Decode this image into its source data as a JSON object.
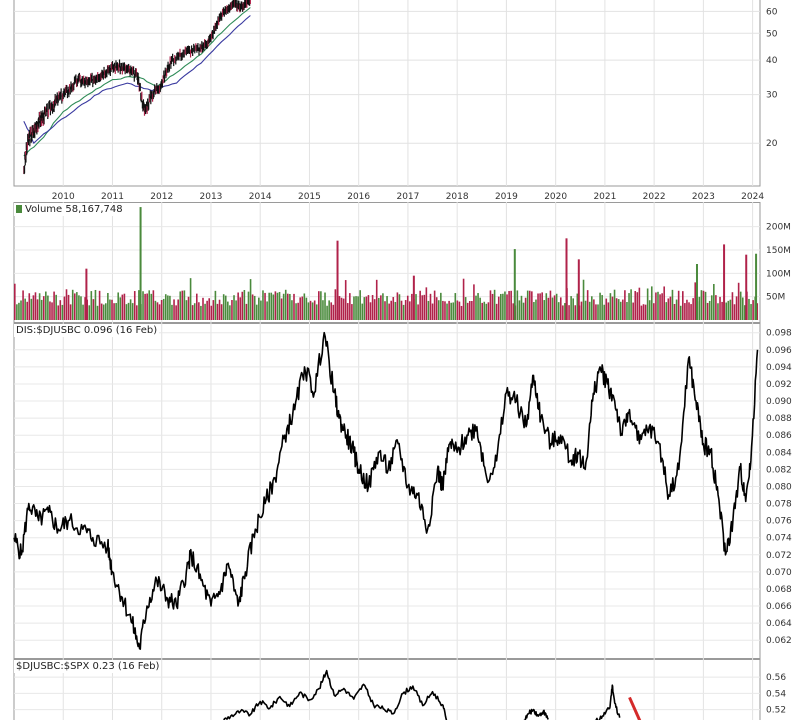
{
  "chart_data": [
    {
      "panel": "price",
      "type": "line",
      "log_scale": true,
      "x_ticks": [
        "2010",
        "2011",
        "2012",
        "2013",
        "2014",
        "2015",
        "2016",
        "2017",
        "2018",
        "2019",
        "2020",
        "2021",
        "2022",
        "2023",
        "2024"
      ],
      "y_ticks": [
        60,
        50,
        40,
        30,
        20
      ],
      "ylim": [
        14,
        66
      ],
      "series": [
        {
          "color": "#111111",
          "style": "bars",
          "x": [
            2009.2,
            2009.3,
            2009.4,
            2009.5,
            2009.6,
            2009.75,
            2009.9,
            2010.1,
            2010.3,
            2010.5,
            2010.7,
            2010.9,
            2011.1,
            2011.3,
            2011.5,
            2011.65,
            2011.8,
            2012.0,
            2012.2,
            2012.5,
            2012.8,
            2013.0,
            2013.2,
            2013.45,
            2013.6,
            2013.8
          ],
          "y": [
            16,
            21,
            22,
            24,
            25,
            27,
            29,
            31,
            34,
            33,
            35,
            37,
            38,
            37,
            35,
            26,
            30,
            33,
            40,
            43,
            44,
            48,
            58,
            64,
            62,
            66
          ]
        },
        {
          "color": "#2e8b57",
          "x": [
            2009.2,
            2009.6,
            2010.0,
            2010.5,
            2011.0,
            2011.5,
            2011.9,
            2012.3,
            2012.8,
            2013.3,
            2013.8
          ],
          "y": [
            18,
            21,
            26,
            30,
            34,
            35,
            32,
            36,
            42,
            52,
            62
          ]
        },
        {
          "color": "#3a3aa0",
          "x": [
            2009.2,
            2009.4,
            2009.8,
            2010.3,
            2010.8,
            2011.3,
            2011.8,
            2012.3,
            2012.8,
            2013.3,
            2013.8
          ],
          "y": [
            24,
            20,
            23,
            27,
            31,
            33,
            31,
            33,
            39,
            48,
            58
          ]
        }
      ]
    },
    {
      "panel": "volume",
      "type": "bar",
      "label": "Volume 58,167,748",
      "y_ticks_labels": [
        "200M",
        "150M",
        "100M",
        "50M"
      ],
      "y_ticks_values": [
        200,
        150,
        100,
        50
      ],
      "ylim": [
        0,
        240
      ],
      "unit": "M",
      "spikes": [
        {
          "x": 2010.45,
          "v": 110
        },
        {
          "x": 2011.55,
          "v": 242
        },
        {
          "x": 2015.55,
          "v": 170
        },
        {
          "x": 2017.1,
          "v": 95
        },
        {
          "x": 2019.15,
          "v": 152
        },
        {
          "x": 2020.2,
          "v": 175
        },
        {
          "x": 2020.45,
          "v": 130
        },
        {
          "x": 2022.85,
          "v": 120
        },
        {
          "x": 2023.4,
          "v": 162
        },
        {
          "x": 2023.85,
          "v": 140
        },
        {
          "x": 2024.05,
          "v": 142
        }
      ],
      "up_color": "#4a8a3c",
      "down_color": "#b0224a"
    },
    {
      "panel": "ratio1",
      "type": "line",
      "label": "DIS:$DJUSBC 0.096 (16 Feb)",
      "y_ticks": [
        0.098,
        0.096,
        0.094,
        0.092,
        0.09,
        0.088,
        0.086,
        0.084,
        0.082,
        0.08,
        0.078,
        0.076,
        0.074,
        0.072,
        0.07,
        0.068,
        0.066,
        0.064,
        0.062
      ],
      "ylim": [
        0.0605,
        0.0982
      ],
      "series": [
        {
          "color": "#000000",
          "x": [
            2009.0,
            2009.15,
            2009.3,
            2009.5,
            2009.7,
            2009.9,
            2010.1,
            2010.4,
            2010.6,
            2010.9,
            2011.0,
            2011.2,
            2011.4,
            2011.55,
            2011.7,
            2011.9,
            2012.1,
            2012.3,
            2012.5,
            2012.6,
            2012.8,
            2013.0,
            2013.2,
            2013.35,
            2013.55,
            2013.7,
            2013.9,
            2014.1,
            2014.3,
            2014.5,
            2014.7,
            2014.9,
            2015.1,
            2015.3,
            2015.5,
            2015.6,
            2015.75,
            2015.9,
            2016.0,
            2016.2,
            2016.4,
            2016.6,
            2016.8,
            2017.0,
            2017.2,
            2017.4,
            2017.6,
            2017.7,
            2017.85,
            2018.0,
            2018.2,
            2018.4,
            2018.6,
            2018.8,
            2019.0,
            2019.2,
            2019.4,
            2019.55,
            2019.7,
            2019.9,
            2020.1,
            2020.3,
            2020.45,
            2020.6,
            2020.75,
            2020.9,
            2021.05,
            2021.2,
            2021.35,
            2021.5,
            2021.7,
            2021.9,
            2022.1,
            2022.3,
            2022.5,
            2022.7,
            2022.85,
            2023.0,
            2023.15,
            2023.3,
            2023.45,
            2023.6,
            2023.75,
            2023.85,
            2023.95,
            2024.1
          ],
          "y": [
            0.074,
            0.072,
            0.078,
            0.076,
            0.077,
            0.075,
            0.076,
            0.075,
            0.074,
            0.073,
            0.07,
            0.067,
            0.064,
            0.061,
            0.066,
            0.069,
            0.067,
            0.066,
            0.07,
            0.072,
            0.069,
            0.066,
            0.068,
            0.071,
            0.066,
            0.07,
            0.075,
            0.078,
            0.081,
            0.086,
            0.089,
            0.094,
            0.091,
            0.098,
            0.091,
            0.088,
            0.086,
            0.084,
            0.082,
            0.08,
            0.084,
            0.082,
            0.085,
            0.08,
            0.079,
            0.075,
            0.082,
            0.08,
            0.085,
            0.084,
            0.086,
            0.087,
            0.081,
            0.083,
            0.091,
            0.09,
            0.087,
            0.093,
            0.088,
            0.085,
            0.086,
            0.083,
            0.084,
            0.082,
            0.09,
            0.094,
            0.092,
            0.09,
            0.086,
            0.089,
            0.085,
            0.087,
            0.085,
            0.079,
            0.082,
            0.095,
            0.09,
            0.085,
            0.084,
            0.079,
            0.072,
            0.076,
            0.082,
            0.079,
            0.082,
            0.096
          ]
        }
      ]
    },
    {
      "panel": "ratio2",
      "type": "line",
      "label": "$DJUSBC:$SPX 0.23 (16 Feb)",
      "y_ticks": [
        0.56,
        0.54,
        0.52
      ],
      "ylim": [
        0.49,
        0.57
      ],
      "series": [
        {
          "color": "#000000",
          "x": [
            2013.2,
            2013.4,
            2013.6,
            2013.8,
            2014.0,
            2014.2,
            2014.4,
            2014.6,
            2014.8,
            2015.0,
            2015.2,
            2015.35,
            2015.5,
            2015.7,
            2015.9,
            2016.1,
            2016.3,
            2016.5,
            2016.7,
            2016.9,
            2017.1,
            2017.3,
            2017.5,
            2017.7,
            2017.8
          ],
          "y": [
            0.505,
            0.512,
            0.518,
            0.514,
            0.53,
            0.522,
            0.536,
            0.524,
            0.541,
            0.532,
            0.546,
            0.568,
            0.538,
            0.546,
            0.533,
            0.551,
            0.526,
            0.521,
            0.515,
            0.54,
            0.549,
            0.525,
            0.542,
            0.526,
            0.505
          ]
        },
        {
          "color": "#000000",
          "x": [
            2019.35,
            2019.45,
            2019.55,
            2019.65,
            2019.75,
            2019.85
          ],
          "y": [
            0.505,
            0.515,
            0.52,
            0.512,
            0.518,
            0.508
          ]
        },
        {
          "color": "#000000",
          "x": [
            2020.8,
            2020.95,
            2021.1,
            2021.15,
            2021.2,
            2021.3
          ],
          "y": [
            0.505,
            0.512,
            0.522,
            0.55,
            0.528,
            0.51
          ]
        }
      ],
      "annotation": {
        "type": "arrow",
        "color": "#d42a2a",
        "x_from": 2021.5,
        "y_from": 0.535,
        "x_to": 2021.72,
        "y_to": 0.505
      }
    }
  ]
}
